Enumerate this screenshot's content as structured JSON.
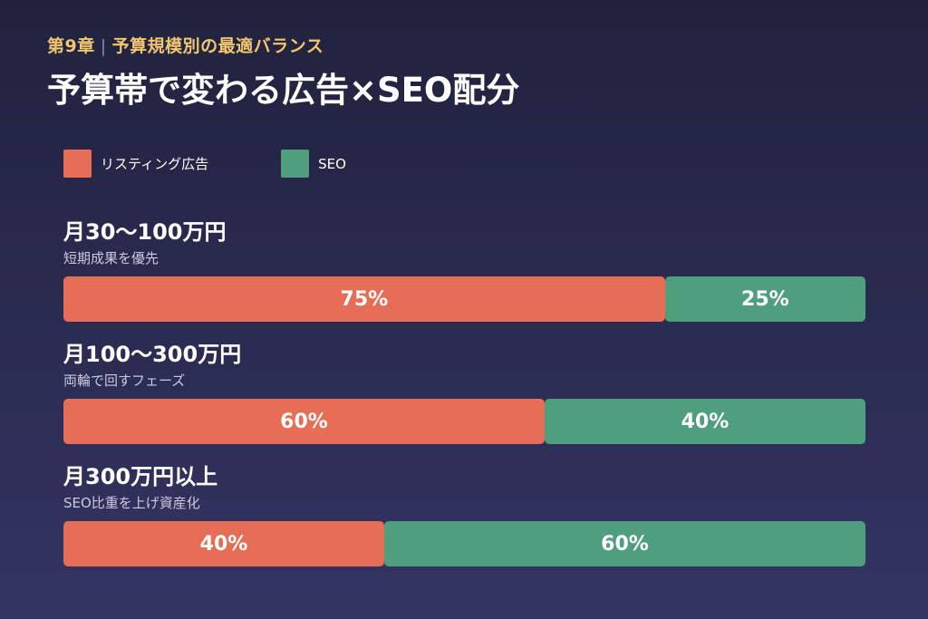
{
  "header": {
    "chapter": "第9章",
    "chapter_title": "予算規模別の最適バランス",
    "title": "予算帯で変わる広告×SEO配分"
  },
  "legend": [
    {
      "label": "リスティング広告",
      "color": "#e66d56"
    },
    {
      "label": "SEO",
      "color": "#4f9f7e"
    }
  ],
  "chart_data": {
    "type": "bar",
    "stacked": true,
    "orientation": "horizontal",
    "unit": "%",
    "categories": [
      "月30〜100万円",
      "月100〜300万円",
      "月300万円以上"
    ],
    "subtitles": [
      "短期成果を優先",
      "両輪で回すフェーズ",
      "SEO比重を上げ資産化"
    ],
    "series": [
      {
        "name": "リスティング広告",
        "values": [
          75,
          60,
          40
        ],
        "color": "#e66d56"
      },
      {
        "name": "SEO",
        "values": [
          25,
          40,
          60
        ],
        "color": "#4f9f7e"
      }
    ]
  }
}
